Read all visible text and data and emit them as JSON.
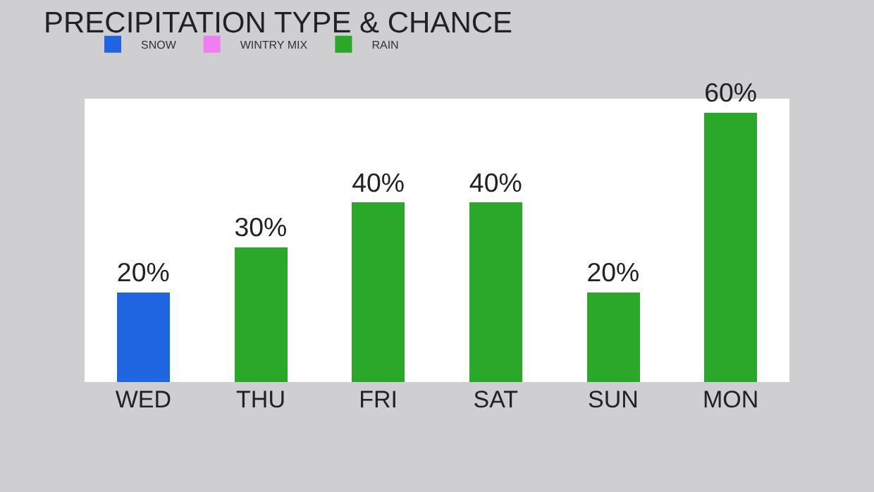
{
  "chart_data": {
    "type": "bar",
    "title": "PRECIPITATION TYPE & CHANCE",
    "categories": [
      "WED",
      "THU",
      "FRI",
      "SAT",
      "SUN",
      "MON"
    ],
    "stacked": true,
    "legend": "top left",
    "grid": false,
    "series": [
      {
        "name": "RAIN",
        "color": "#2aa82a",
        "values": [
          null,
          30,
          40,
          40,
          20,
          60
        ],
        "value_labels": [
          null,
          "30%",
          "40%",
          "40%",
          "20%",
          "60%"
        ]
      },
      {
        "name": "WINTRY MIX",
        "color": "#f07ef0",
        "values": [
          null,
          null,
          null,
          null,
          null,
          null
        ],
        "value_labels": [
          null,
          null,
          null,
          null,
          null,
          null
        ]
      },
      {
        "name": "SNOW",
        "color": "#1f64e0",
        "values": [
          20,
          null,
          null,
          null,
          null,
          null
        ],
        "value_labels": [
          "20%",
          null,
          null,
          null,
          null,
          null
        ]
      }
    ]
  }
}
